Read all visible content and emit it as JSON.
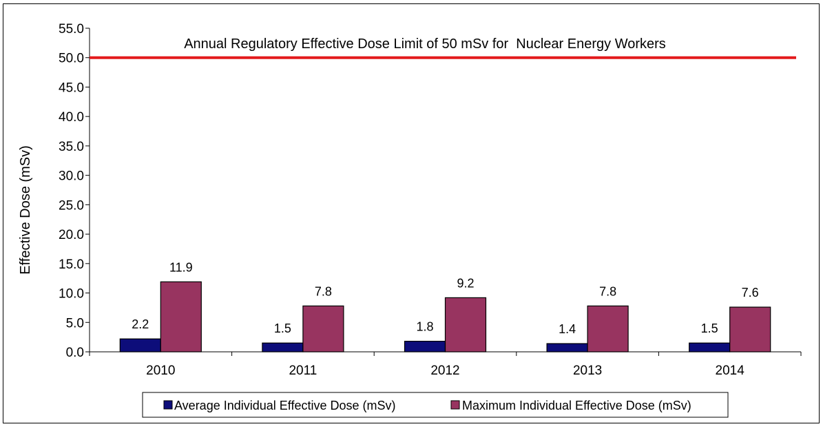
{
  "chart_data": {
    "type": "bar",
    "categories": [
      "2010",
      "2011",
      "2012",
      "2013",
      "2014"
    ],
    "series": [
      {
        "name": "Average Individual Effective Dose (mSv)",
        "values": [
          2.2,
          1.5,
          1.8,
          1.4,
          1.5
        ],
        "labels": [
          "2.2",
          "1.5",
          "1.8",
          "1.4",
          "1.5"
        ],
        "color": "#0d0d7a"
      },
      {
        "name": "Maximum Individual Effective Dose (mSv)",
        "values": [
          11.9,
          7.8,
          9.2,
          7.8,
          7.6
        ],
        "labels": [
          "11.9",
          "7.8",
          "9.2",
          "7.8",
          "7.6"
        ],
        "color": "#983460"
      }
    ],
    "ylabel": "Effective Dose (mSv)",
    "ylim": [
      0,
      55
    ],
    "yticks": [
      0,
      5,
      10,
      15,
      20,
      25,
      30,
      35,
      40,
      45,
      50,
      55
    ],
    "ytick_labels": [
      "0.0",
      "5.0",
      "10.0",
      "15.0",
      "20.0",
      "25.0",
      "30.0",
      "35.0",
      "40.0",
      "45.0",
      "50.0",
      "55.0"
    ],
    "reference_line": {
      "value": 50,
      "label": "Annual Regulatory Effective Dose Limit of 50 mSv for  Nuclear Energy Workers",
      "color": "#e31a1c"
    },
    "grid": false,
    "legend_position": "bottom"
  }
}
